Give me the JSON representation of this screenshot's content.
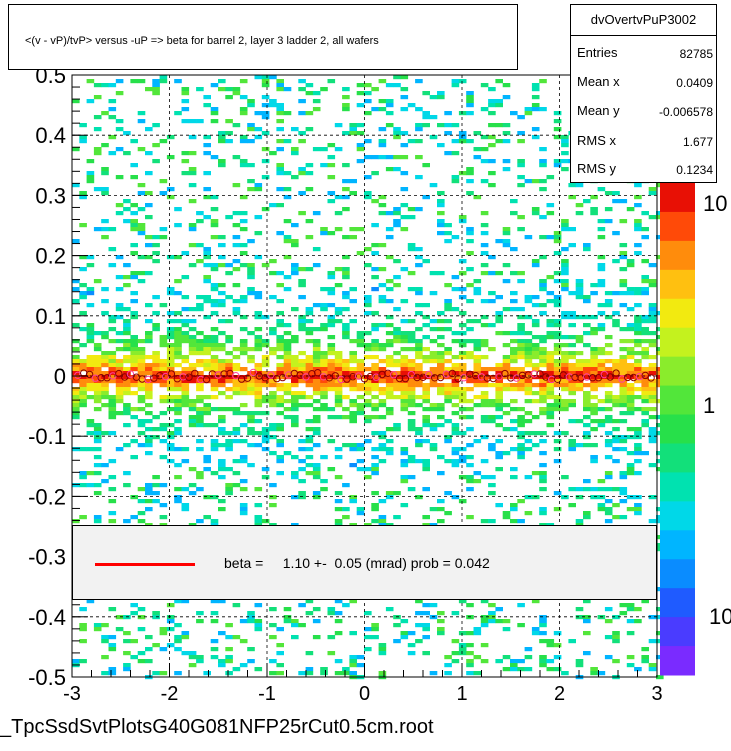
{
  "title": "<(v - vP)/tvP> versus  -uP => beta for barrel 2, layer 3 ladder 2, all wafers",
  "stats": {
    "name": "dvOvertvPuP3002",
    "rows": [
      {
        "label": "Entries",
        "value": "82785"
      },
      {
        "label": "Mean x",
        "value": "0.0409"
      },
      {
        "label": "Mean y",
        "value": "-0.006578"
      },
      {
        "label": "RMS x",
        "value": "1.677"
      },
      {
        "label": "RMS y",
        "value": "0.1234"
      }
    ]
  },
  "fit": {
    "text": "beta =     1.10 +-  0.05 (mrad) prob = 0.042",
    "line_color": "#ff0000"
  },
  "footer": "_TpcSsdSvtPlotsG40G081NFP25rCut0.5cm.root",
  "chart_data": {
    "type": "heatmap",
    "xlim": [
      -3,
      3
    ],
    "ylim": [
      -0.5,
      0.5
    ],
    "x_ticks": [
      "-3",
      "-2",
      "-1",
      "0",
      "1",
      "2",
      "3"
    ],
    "y_ticks": [
      "-0.5",
      "-0.4",
      "-0.3",
      "-0.2",
      "-0.1",
      "0",
      "0.1",
      "0.2",
      "0.3",
      "0.4",
      "0.5"
    ],
    "grid": true,
    "colorbar": {
      "scale": "log",
      "tick_labels": [
        "10",
        "1",
        "10"
      ]
    },
    "profile_points": {
      "x_start": -2.94,
      "x_step": 0.06,
      "count": 99,
      "y_mean": 0.0
    }
  }
}
